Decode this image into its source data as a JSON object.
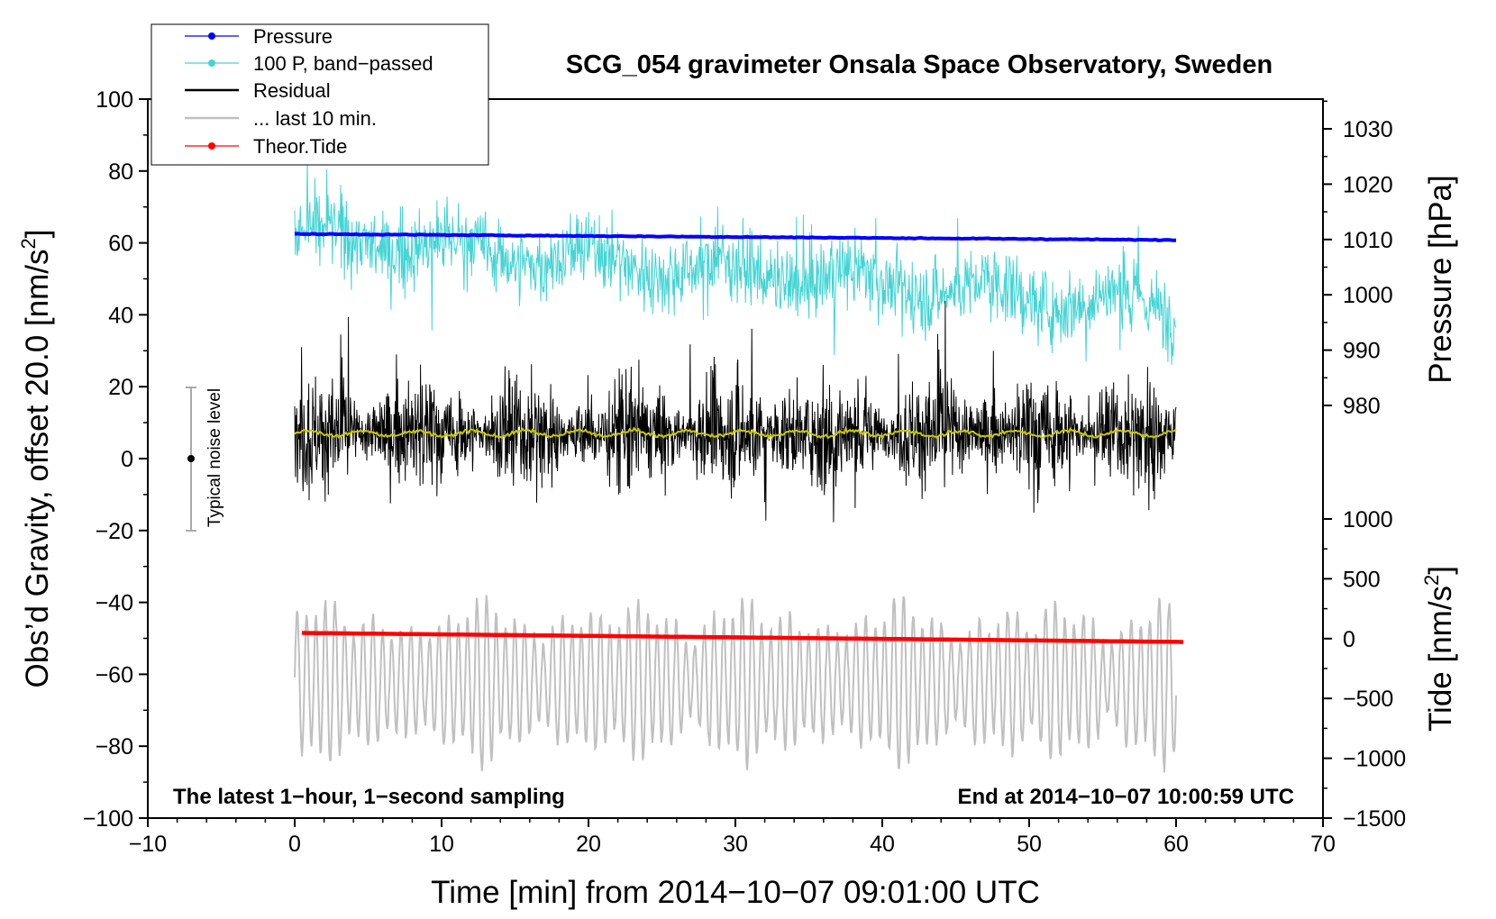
{
  "chart_data": {
    "type": "line",
    "title": "SCG_054 gravimeter Onsala Space Observatory, Sweden",
    "xlabel": "Time [min] from 2014−10−07 09:01:00 UTC",
    "ylabel": "Obs’d Gravity, offset 20.0 [nm/s2]",
    "ylabel_main": "Obs’d Gravity, offset 20.0 [nm/s",
    "ylabel_sup": "2",
    "ylabel_tail": "]",
    "xlim": [
      -10,
      70
    ],
    "ylim": [
      -100,
      100
    ],
    "x_ticks": [
      "−10",
      "0",
      "10",
      "20",
      "30",
      "40",
      "50",
      "60",
      "70"
    ],
    "y_ticks": [
      "100",
      "80",
      "60",
      "40",
      "20",
      "0",
      "−20",
      "−40",
      "−60",
      "−80",
      "−100"
    ],
    "pressure_axis": {
      "label": "Pressure [hPa]",
      "ticks": [
        "1030",
        "1020",
        "1010",
        "1000",
        "990",
        "980"
      ],
      "range": [
        1010.2,
        1007.9
      ]
    },
    "tide_axis": {
      "label_main": "Tide [nm/s",
      "label_sup": "2",
      "label_tail": "]",
      "ticks": [
        "1000",
        "500",
        "0",
        "−500",
        "−1000",
        "−1500"
      ]
    },
    "series": [
      {
        "name": "Pressure",
        "color": "#0000ff",
        "y_start": 62.5,
        "y_end": 60.8,
        "x_range": [
          0,
          60
        ]
      },
      {
        "name": "100 P, band−passed",
        "color": "#44d4d4",
        "y_start": 62,
        "y_end": 42,
        "amplitude": 8,
        "x_range": [
          0,
          60
        ]
      },
      {
        "name": "Residual",
        "color": "#000000",
        "mean": 7,
        "amplitude": 15,
        "x_range": [
          0,
          60
        ]
      },
      {
        "name": "... last 10 min.",
        "color": "#c0c0c0",
        "mean": -57,
        "amplitude": 22,
        "x_range": [
          0,
          60
        ]
      },
      {
        "name": "Theor.Tide",
        "color": "#ff0000",
        "y_start": -48.5,
        "y_end": -51,
        "x_range": [
          0.5,
          60.5
        ]
      }
    ],
    "noise_bar": {
      "label": "Typical noise level",
      "x": -7,
      "y_center": 0,
      "y_low": -20,
      "y_high": 20
    },
    "annotations": {
      "bottom_left": "The latest 1−hour, 1−second sampling",
      "bottom_right": "End at 2014−10−07 10:00:59 UTC"
    }
  },
  "colors": {
    "pressure": "#0000ff",
    "bandpassed": "#44d4d4",
    "residual": "#000000",
    "residual_mean": "#c8c800",
    "last10": "#c0c0c0",
    "tide": "#ff0000",
    "noise_bar": "#aaaaaa"
  }
}
